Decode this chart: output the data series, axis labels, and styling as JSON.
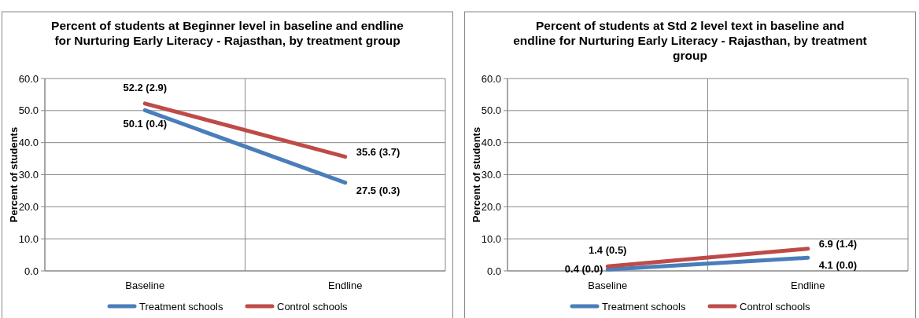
{
  "chart_data": [
    {
      "type": "line",
      "title": "Percent of students at Beginner level in baseline and endline for Nurturing Early Literacy - Rajasthan, by treatment group",
      "ylabel": "Percent of students",
      "categories": [
        "Baseline",
        "Endline"
      ],
      "series": [
        {
          "name": "Treatment schools",
          "color": "#4a7ebb",
          "values": [
            50.1,
            27.5
          ],
          "value_labels": [
            "50.1 (0.4)",
            "27.5 (0.3)"
          ]
        },
        {
          "name": "Control schools",
          "color": "#be4b48",
          "values": [
            52.2,
            35.6
          ],
          "value_labels": [
            "52.2 (2.9)",
            "35.6 (3.7)"
          ]
        }
      ],
      "ylim": [
        0,
        60
      ],
      "yticks": [
        {
          "value": 0,
          "label": "0.0"
        },
        {
          "value": 10,
          "label": "10.0"
        },
        {
          "value": 20,
          "label": "20.0"
        },
        {
          "value": 30,
          "label": "30.0"
        },
        {
          "value": 40,
          "label": "40.0"
        },
        {
          "value": 50,
          "label": "50.0"
        },
        {
          "value": 60,
          "label": "60.0"
        }
      ],
      "grid": true,
      "legend": "bottom",
      "marker": "none",
      "line_style": "solid"
    },
    {
      "type": "line",
      "title": "Percent of students at Std 2 level text in baseline and endline for Nurturing Early Literacy - Rajasthan, by treatment group",
      "ylabel": "Percent of students",
      "categories": [
        "Baseline",
        "Endline"
      ],
      "series": [
        {
          "name": "Treatment schools",
          "color": "#4a7ebb",
          "values": [
            0.4,
            4.1
          ],
          "value_labels": [
            "0.4 (0.0)",
            "4.1 (0.0)"
          ]
        },
        {
          "name": "Control schools",
          "color": "#be4b48",
          "values": [
            1.4,
            6.9
          ],
          "value_labels": [
            "1.4 (0.5)",
            "6.9 (1.4)"
          ]
        }
      ],
      "ylim": [
        0,
        60
      ],
      "yticks": [
        {
          "value": 0,
          "label": "0.0"
        },
        {
          "value": 10,
          "label": "10.0"
        },
        {
          "value": 20,
          "label": "20.0"
        },
        {
          "value": 30,
          "label": "30.0"
        },
        {
          "value": 40,
          "label": "40.0"
        },
        {
          "value": 50,
          "label": "50.0"
        },
        {
          "value": 60,
          "label": "60.0"
        }
      ],
      "grid": true,
      "legend": "bottom",
      "marker": "none",
      "line_style": "solid"
    }
  ]
}
